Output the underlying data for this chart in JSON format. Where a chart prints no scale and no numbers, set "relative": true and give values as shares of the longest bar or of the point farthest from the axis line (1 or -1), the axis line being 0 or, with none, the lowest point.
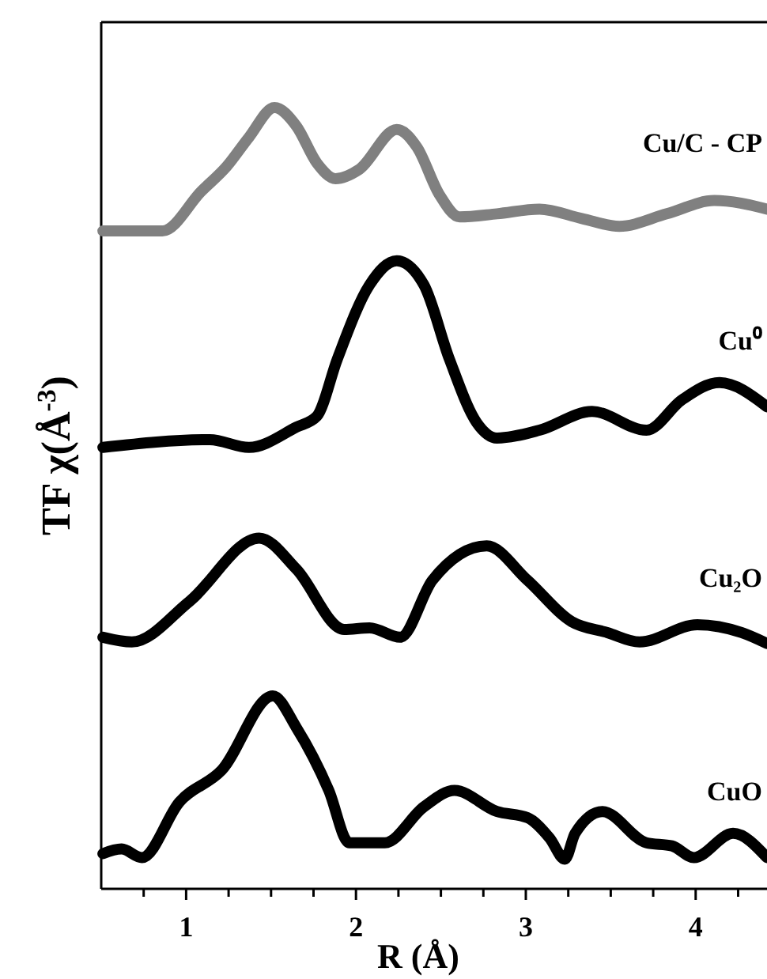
{
  "chart_data": {
    "type": "line",
    "relative": true,
    "xlabel": "R (Å)",
    "ylabel": "TF χ(Å$^{-3}$)",
    "xlim": [
      0.5,
      4.42
    ],
    "xticks": [
      {
        "value": 0.75,
        "label": null
      },
      1,
      {
        "value": 1.25,
        "label": null
      },
      {
        "value": 1.5,
        "label": null
      },
      {
        "value": 1.75,
        "label": null
      },
      2,
      {
        "value": 2.25,
        "label": null
      },
      {
        "value": 2.5,
        "label": null
      },
      {
        "value": 2.75,
        "label": null
      },
      3,
      {
        "value": 3.25,
        "label": null
      },
      {
        "value": 3.5,
        "label": null
      },
      {
        "value": 3.75,
        "label": null
      },
      4,
      {
        "value": 4.25,
        "label": null
      }
    ],
    "series": [
      {
        "name": "Cu/C - CP",
        "color": "#808080",
        "x": [
          0.51,
          0.86,
          1.09,
          1.24,
          1.37,
          1.52,
          1.65,
          1.77,
          1.88,
          2.02,
          2.24,
          2.36,
          2.49,
          2.61,
          2.83,
          3.08,
          3.33,
          3.55,
          3.83,
          4.11,
          4.42
        ],
        "values": [
          0.842,
          0.842,
          0.893,
          0.925,
          0.962,
          1.0,
          0.976,
          0.929,
          0.909,
          0.921,
          0.972,
          0.949,
          0.889,
          0.86,
          0.864,
          0.87,
          0.858,
          0.848,
          0.864,
          0.881,
          0.87
        ]
      },
      {
        "name": "Cu⁰",
        "color": "#000000",
        "x": [
          0.51,
          1.14,
          1.37,
          1.65,
          1.77,
          1.89,
          2.08,
          2.24,
          2.4,
          2.55,
          2.71,
          2.83,
          3.08,
          3.39,
          3.71,
          3.92,
          4.14,
          4.42
        ],
        "values": [
          0.565,
          0.575,
          0.565,
          0.591,
          0.605,
          0.678,
          0.773,
          0.804,
          0.773,
          0.678,
          0.597,
          0.577,
          0.587,
          0.611,
          0.587,
          0.626,
          0.648,
          0.617
        ]
      },
      {
        "name": "Cu₂O",
        "color": "#000000",
        "x": [
          0.51,
          0.68,
          1.02,
          1.43,
          1.65,
          1.93,
          2.08,
          2.26,
          2.45,
          2.77,
          3.01,
          3.27,
          3.48,
          3.67,
          4.01,
          4.27,
          4.42
        ],
        "values": [
          0.322,
          0.316,
          0.368,
          0.449,
          0.409,
          0.332,
          0.334,
          0.322,
          0.395,
          0.439,
          0.395,
          0.342,
          0.328,
          0.316,
          0.338,
          0.328,
          0.314
        ]
      },
      {
        "name": "CuO",
        "color": "#000000",
        "x": [
          0.51,
          0.62,
          0.74,
          0.96,
          1.21,
          1.51,
          1.65,
          1.84,
          1.96,
          2.17,
          2.4,
          2.58,
          2.83,
          3.01,
          3.14,
          3.23,
          3.29,
          3.45,
          3.71,
          3.86,
          3.99,
          4.22,
          4.42
        ],
        "values": [
          0.045,
          0.051,
          0.04,
          0.111,
          0.152,
          0.247,
          0.206,
          0.126,
          0.059,
          0.059,
          0.105,
          0.126,
          0.099,
          0.091,
          0.065,
          0.038,
          0.071,
          0.099,
          0.059,
          0.055,
          0.04,
          0.071,
          0.04
        ]
      }
    ]
  }
}
